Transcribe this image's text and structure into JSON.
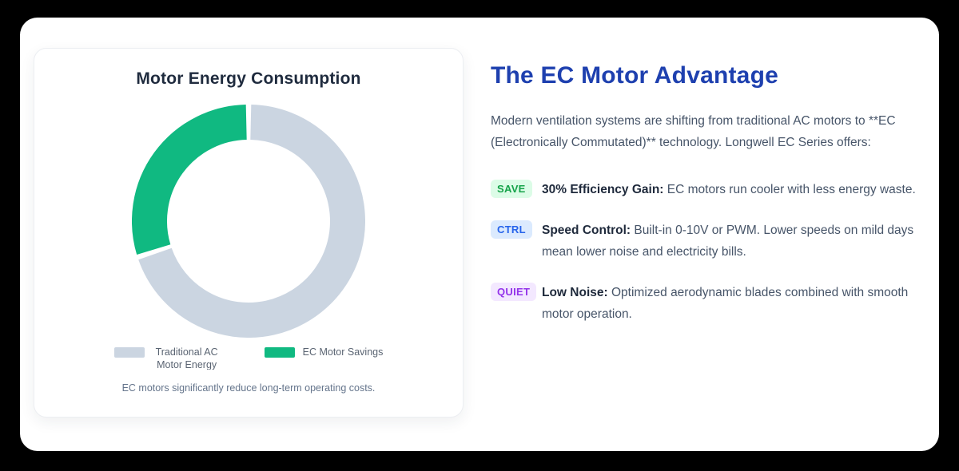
{
  "chart_card": {
    "title": "Motor Energy Consumption",
    "caption": "EC motors significantly reduce long-term operating costs."
  },
  "chart_data": {
    "type": "pie",
    "subtype": "donut",
    "title": "Motor Energy Consumption",
    "categories": [
      "Traditional AC Motor Energy",
      "EC Motor Savings"
    ],
    "values": [
      70,
      30
    ],
    "unit": "percent",
    "colors": [
      "#cbd5e1",
      "#10b981"
    ],
    "start_angle": "top",
    "direction": "clockwise",
    "cutout": "70%",
    "legend_position": "bottom",
    "caption": "EC motors significantly reduce long-term operating costs."
  },
  "right": {
    "heading": "The EC Motor Advantage",
    "intro": "Modern ventilation systems are shifting from traditional AC motors to **EC (Electronically Commutated)** technology. Longwell EC Series offers:",
    "features": [
      {
        "badge": "SAVE",
        "badge_bg": "#dcfce7",
        "badge_color": "#16a34a",
        "title": "30% Efficiency Gain:",
        "text": "EC motors run cooler with less energy waste."
      },
      {
        "badge": "CTRL",
        "badge_bg": "#dbeafe",
        "badge_color": "#2563eb",
        "title": "Speed Control:",
        "text": "Built-in 0-10V or PWM. Lower speeds on mild days mean lower noise and electricity bills."
      },
      {
        "badge": "QUIET",
        "badge_bg": "#f3e8ff",
        "badge_color": "#9333ea",
        "title": "Low Noise:",
        "text": "Optimized aerodynamic blades combined with smooth motor operation."
      }
    ],
    "heading_color": "#1e40af"
  }
}
